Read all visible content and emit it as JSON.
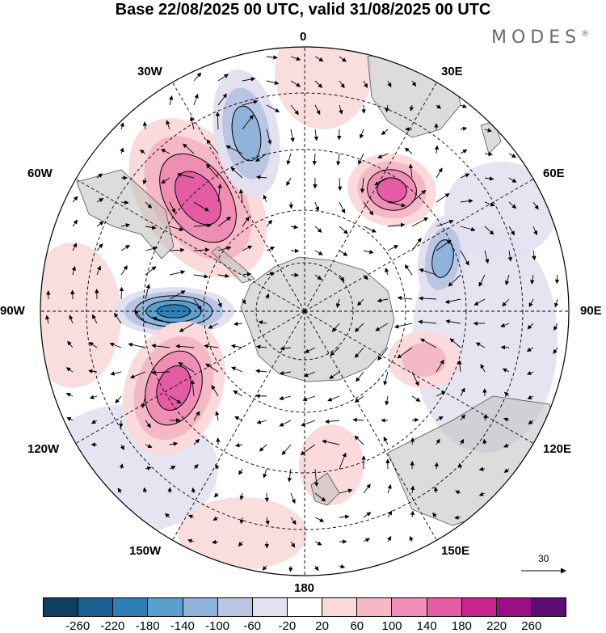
{
  "title": "Base 22/08/2025 00 UTC, valid 31/08/2025 00 UTC",
  "brand": {
    "name": "MODES",
    "mark": "®"
  },
  "longitude_labels": {
    "lon_0": "0",
    "lon_30e": "30E",
    "lon_60e": "60E",
    "lon_90e": "90E",
    "lon_120e": "120E",
    "lon_150e": "150E",
    "lon_180": "180",
    "lon_150w": "150W",
    "lon_120w": "120W",
    "lon_90w": "90W",
    "lon_60w": "60W",
    "lon_30w": "30W"
  },
  "reference_vector": {
    "label": "30"
  },
  "colorbar": {
    "colors": [
      "#0d3f5f",
      "#1a5f8f",
      "#2f7fb5",
      "#5b9fcc",
      "#8fb3da",
      "#b9c5e3",
      "#e3e1f0",
      "#ffffff",
      "#fadada",
      "#f5b8c6",
      "#ee8eb5",
      "#e45ca4",
      "#c92490",
      "#9c0f84",
      "#5c0c72"
    ],
    "ticks": [
      "-260",
      "-220",
      "-180",
      "-140",
      "-100",
      "-60",
      "-20",
      "20",
      "60",
      "100",
      "140",
      "180",
      "220",
      "260"
    ]
  },
  "map_data": {
    "projection": "south polar stereographic",
    "field": "height anomaly with wind vectors",
    "anomaly_centres": [
      {
        "name": "ridge-south-atlantic",
        "sign": "positive",
        "level": 180
      },
      {
        "name": "trough-drake-passage",
        "sign": "negative",
        "level": -220
      },
      {
        "name": "ridge-southeast-pacific",
        "sign": "positive",
        "level": 180
      },
      {
        "name": "ridge-southern-africa",
        "sign": "positive",
        "level": 180
      },
      {
        "name": "trough-central-atlantic",
        "sign": "negative",
        "level": -140
      },
      {
        "name": "trough-indian-ocean",
        "sign": "negative",
        "level": -140
      },
      {
        "name": "ridge-east-indian",
        "sign": "positive",
        "level": 100
      },
      {
        "name": "ridge-new-zealand",
        "sign": "positive",
        "level": 60
      }
    ]
  }
}
